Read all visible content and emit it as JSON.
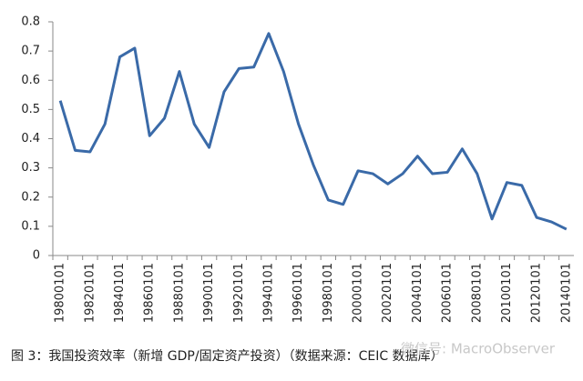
{
  "chart_data": {
    "type": "line",
    "caption": "图 3：我国投资效率（新增 GDP/固定资产投资）（数据来源：CEIC 数据库）",
    "watermark": "微信号: MacroObserver",
    "categories": [
      "19800101",
      null,
      "19820101",
      null,
      "19840101",
      null,
      "19860101",
      null,
      "19880101",
      null,
      "19900101",
      null,
      "19920101",
      null,
      "19940101",
      null,
      "19960101",
      null,
      "19980101",
      null,
      "20000101",
      null,
      "20020101",
      null,
      "20040101",
      null,
      "20060101",
      null,
      "20080101",
      null,
      "20100101",
      null,
      "20120101",
      null,
      "20140101"
    ],
    "values": [
      0.53,
      0.36,
      0.355,
      0.45,
      0.68,
      0.71,
      0.41,
      0.47,
      0.63,
      0.45,
      0.37,
      0.56,
      0.64,
      0.645,
      0.76,
      0.63,
      0.45,
      0.31,
      0.19,
      0.175,
      0.29,
      0.28,
      0.245,
      0.28,
      0.34,
      0.28,
      0.285,
      0.365,
      0.28,
      0.125,
      0.25,
      0.24,
      0.13,
      0.115,
      0.09
    ],
    "color": "#3a6aa8",
    "ylim": [
      0,
      0.8
    ],
    "yticks": [
      {
        "value": 0,
        "label": "0"
      },
      0.1,
      0.2,
      0.3,
      0.4,
      0.5,
      0.6,
      0.7,
      0.8
    ]
  }
}
